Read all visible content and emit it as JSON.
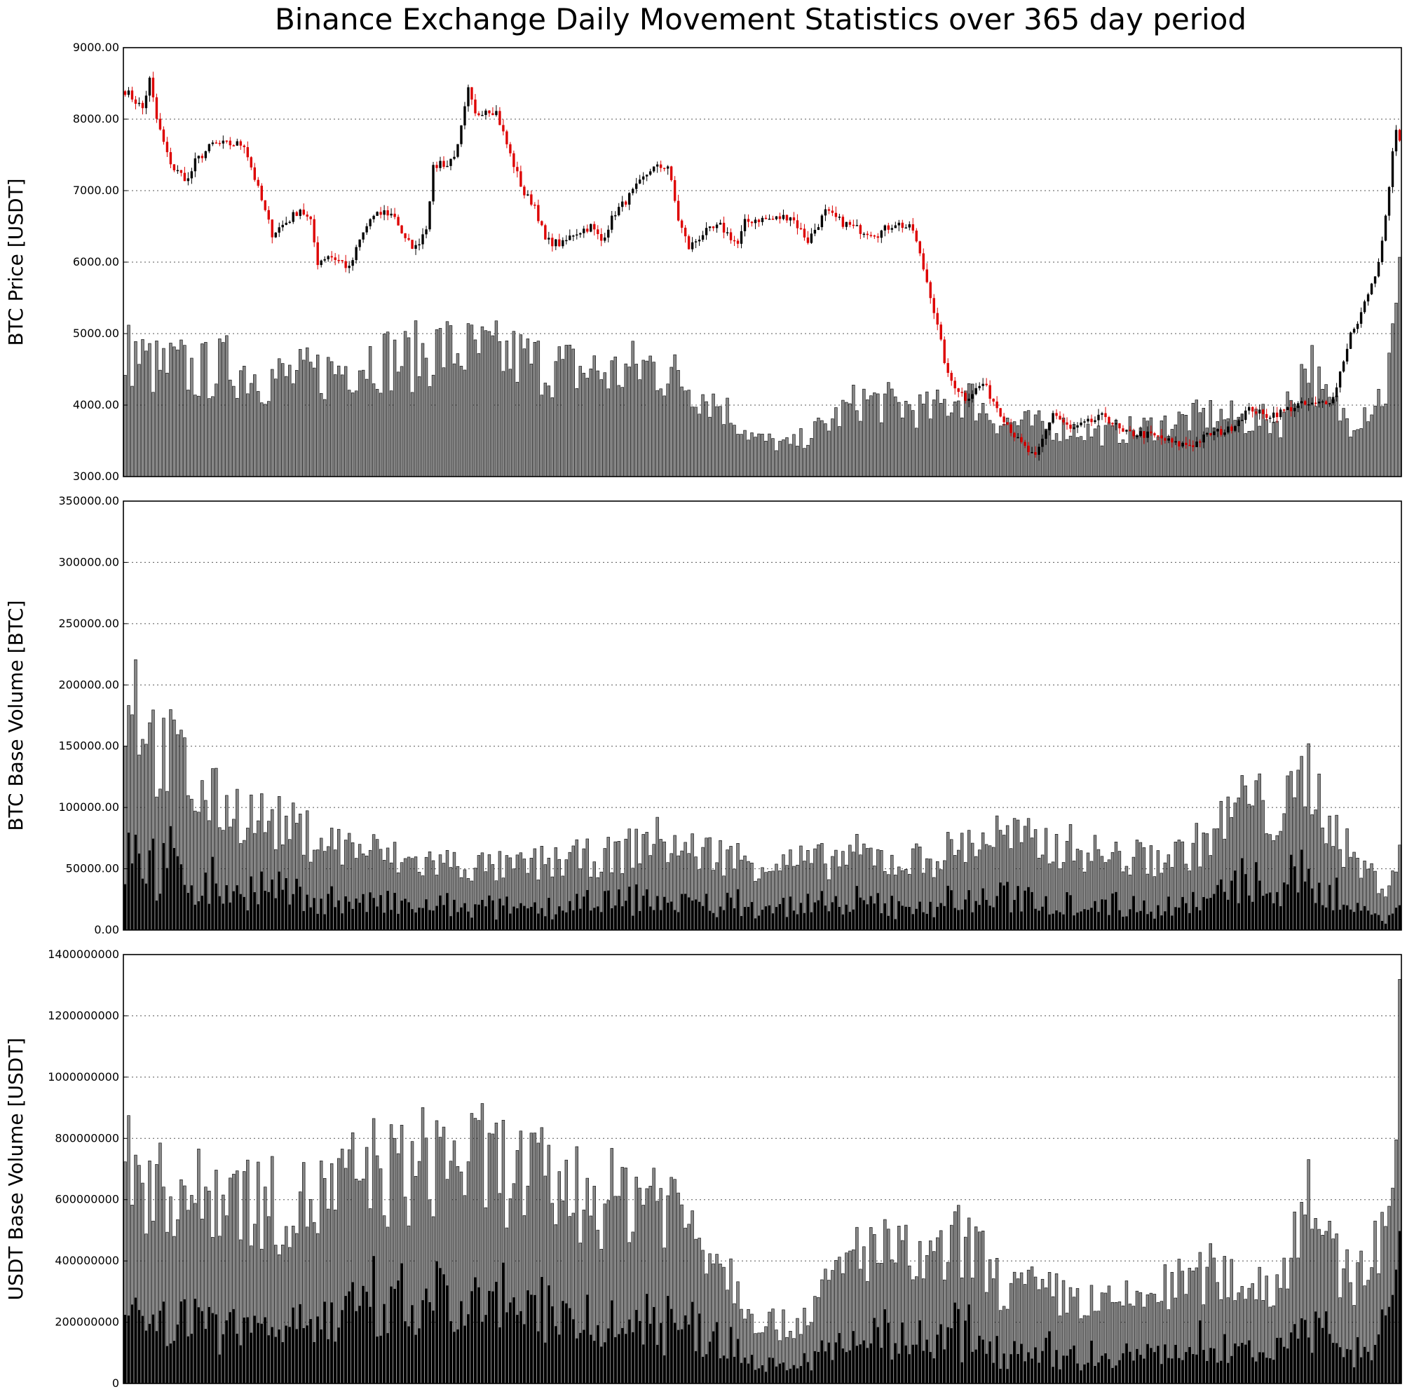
{
  "title": "Binance Exchange Daily Movement Statistics over 365 day period",
  "colors": {
    "up": "#000000",
    "down": "#dd0000",
    "volume_bar": "#888888",
    "volume_edge": "#000000",
    "taker_bar": "#000000"
  },
  "panels": [
    {
      "id": "price",
      "ylabel": "BTC Price [USDT]",
      "ylim": [
        3000,
        9000
      ],
      "ticks": [
        3000,
        4000,
        5000,
        6000,
        7000,
        8000,
        9000
      ],
      "tick_labels": [
        "3000.00",
        "4000.00",
        "5000.00",
        "6000.00",
        "7000.00",
        "8000.00",
        "9000.00"
      ],
      "grid": true
    },
    {
      "id": "btc_volume",
      "ylabel": "BTC Base Volume [BTC]",
      "ylim": [
        0,
        350000
      ],
      "ticks": [
        0,
        50000,
        100000,
        150000,
        200000,
        250000,
        300000,
        350000
      ],
      "tick_labels": [
        "0.00",
        "50000.00",
        "100000.00",
        "150000.00",
        "200000.00",
        "250000.00",
        "300000.00",
        "350000.00"
      ],
      "grid": true
    },
    {
      "id": "usdt_volume",
      "ylabel": "USDT Base Volume [USDT]",
      "ylim": [
        0,
        1400000000
      ],
      "ticks": [
        0,
        200000000,
        400000000,
        600000000,
        800000000,
        1000000000,
        1200000000,
        1400000000
      ],
      "tick_labels": [
        "0",
        "200000000",
        "400000000",
        "600000000",
        "800000000",
        "1000000000",
        "1200000000",
        "1400000000"
      ],
      "grid": true
    }
  ],
  "chart_data": {
    "type": "bar",
    "days": 365,
    "xlim": [
      0,
      365
    ],
    "price_anchor_days": [
      0,
      5,
      7,
      9,
      12,
      14,
      18,
      20,
      25,
      28,
      34,
      40,
      42,
      47,
      50,
      53,
      55,
      58,
      62,
      64,
      67,
      70,
      74,
      77,
      80,
      83,
      86,
      88,
      90,
      92,
      95,
      98,
      100,
      103,
      106,
      110,
      114,
      117,
      120,
      125,
      128,
      133,
      136,
      140,
      142,
      147,
      150,
      155,
      158,
      161,
      165,
      170,
      175,
      177,
      180,
      185,
      190,
      195,
      200,
      205,
      210,
      215,
      220,
      225,
      230,
      235,
      240,
      245,
      250,
      255,
      260,
      265,
      270,
      275,
      280,
      285,
      290,
      295,
      300,
      305,
      310,
      315,
      320,
      322,
      325,
      330,
      335,
      340,
      345,
      350,
      353,
      356,
      358,
      360,
      362,
      364
    ],
    "price_anchor_close": [
      8400,
      8150,
      8550,
      8000,
      7500,
      7300,
      7150,
      7400,
      7650,
      7650,
      7650,
      6700,
      6400,
      6600,
      6750,
      6550,
      6000,
      6100,
      6000,
      5900,
      6300,
      6600,
      6700,
      6650,
      6300,
      6200,
      6500,
      7300,
      7400,
      7350,
      7600,
      8400,
      8050,
      8150,
      8100,
      7500,
      6950,
      6800,
      6300,
      6250,
      6400,
      6500,
      6300,
      6700,
      6800,
      7100,
      7300,
      7350,
      6600,
      6200,
      6400,
      6500,
      6250,
      6550,
      6600,
      6600,
      6650,
      6300,
      6700,
      6550,
      6450,
      6400,
      6550,
      6450,
      5550,
      4400,
      4100,
      4300,
      3900,
      3500,
      3250,
      3900,
      3650,
      3750,
      3850,
      3600,
      3600,
      3550,
      3450,
      3450,
      3600,
      3650,
      3900,
      3950,
      3850,
      3900,
      4000,
      4000,
      4100,
      5000,
      5150,
      5100,
      5250,
      5350,
      5300,
      5300
    ],
    "price_tail_close": [
      5300,
      5450,
      5550,
      5700,
      5800,
      6000,
      6300,
      6650,
      7050,
      7550,
      7850,
      7700
    ],
    "volume_anchor_days": [
      0,
      2,
      5,
      10,
      15,
      20,
      30,
      40,
      50,
      60,
      70,
      80,
      90,
      100,
      110,
      120,
      130,
      140,
      150,
      160,
      170,
      180,
      190,
      200,
      210,
      220,
      230,
      240,
      250,
      260,
      270,
      280,
      290,
      300,
      310,
      320,
      330,
      338,
      342,
      350,
      360,
      364
    ],
    "btc_volume_anchor": [
      180000,
      210000,
      175000,
      140000,
      145000,
      110000,
      100000,
      90000,
      80000,
      70000,
      65000,
      55000,
      55000,
      52000,
      50000,
      55000,
      58000,
      60000,
      75000,
      65000,
      62000,
      55000,
      55000,
      56000,
      62000,
      55000,
      58000,
      70000,
      78000,
      70000,
      68000,
      60000,
      58000,
      60000,
      75000,
      110000,
      90000,
      130000,
      100000,
      60000,
      35000,
      60000
    ],
    "usdt_volume_anchor": [
      700000000,
      720000000,
      680000000,
      620000000,
      650000000,
      600000000,
      650000000,
      580000000,
      580000000,
      620000000,
      700000000,
      680000000,
      750000000,
      720000000,
      700000000,
      650000000,
      620000000,
      600000000,
      650000000,
      550000000,
      420000000,
      220000000,
      180000000,
      300000000,
      450000000,
      420000000,
      380000000,
      480000000,
      320000000,
      300000000,
      280000000,
      250000000,
      280000000,
      320000000,
      360000000,
      330000000,
      320000000,
      700000000,
      450000000,
      330000000,
      500000000,
      1050000000
    ],
    "taker_share": 0.42,
    "volume_in_price_panel_ylim": [
      0,
      30000000000
    ]
  }
}
